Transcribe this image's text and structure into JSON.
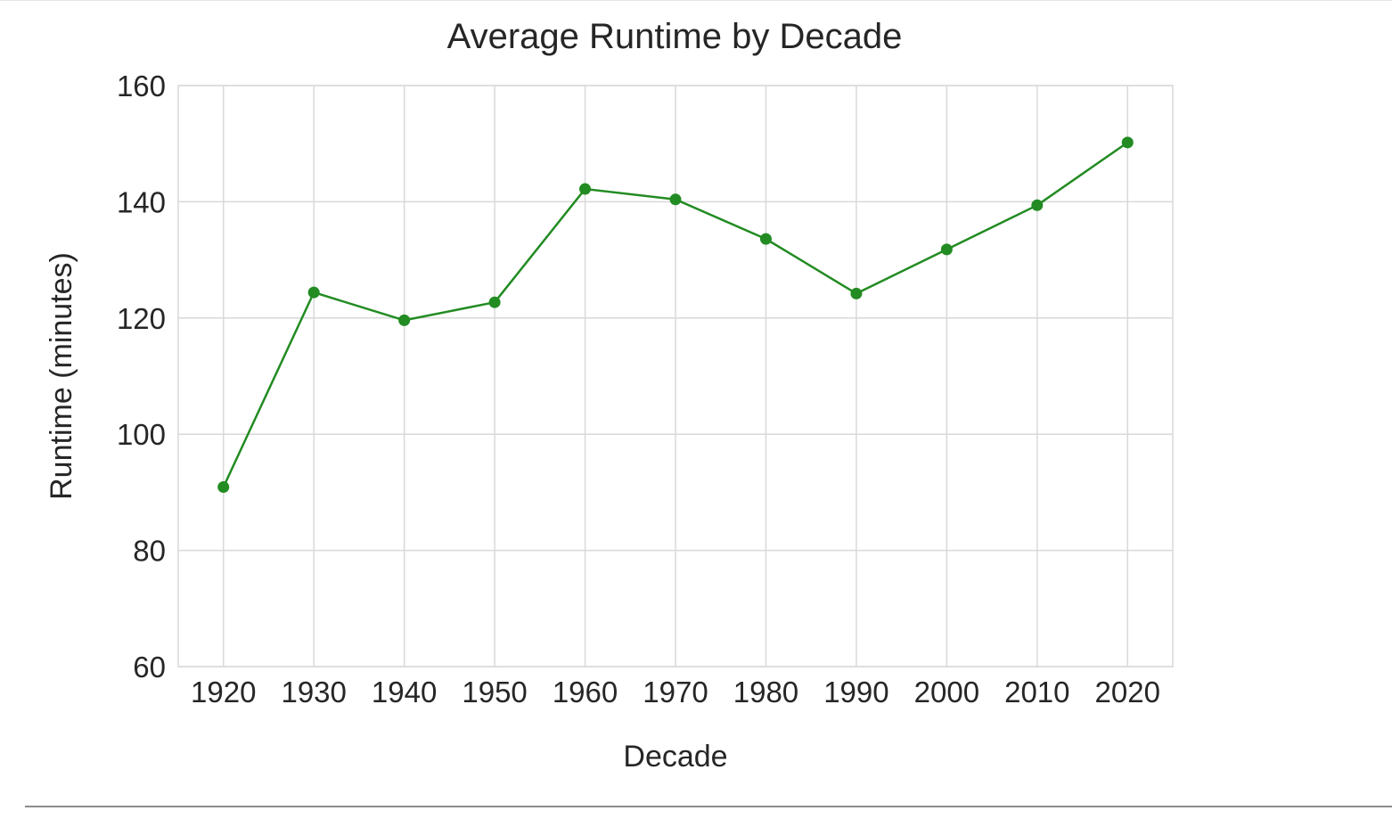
{
  "chart_data": {
    "type": "line",
    "title": "Average Runtime by Decade",
    "xlabel": "Decade",
    "ylabel": "Runtime (minutes)",
    "x": [
      1920,
      1930,
      1940,
      1950,
      1960,
      1970,
      1980,
      1990,
      2000,
      2010,
      2020
    ],
    "x_tick_labels": [
      "1920",
      "1930",
      "1940",
      "1950",
      "1960",
      "1970",
      "1980",
      "1990",
      "2000",
      "2010",
      "2020"
    ],
    "y_ticks": [
      60,
      80,
      100,
      120,
      140,
      160
    ],
    "y_tick_labels": [
      "60",
      "80",
      "100",
      "120",
      "140",
      "160"
    ],
    "ylim": [
      60,
      160
    ],
    "xlim": [
      1915,
      2025
    ],
    "series": [
      {
        "values": [
          90.9,
          124.4,
          119.6,
          122.7,
          142.2,
          140.4,
          133.6,
          124.2,
          131.8,
          139.4,
          150.2
        ],
        "color": "#228b22",
        "marker": "circle"
      }
    ],
    "grid": true,
    "grid_color": "#d9d9d9",
    "spine_color": "#d9d9d9",
    "legend": "none"
  }
}
